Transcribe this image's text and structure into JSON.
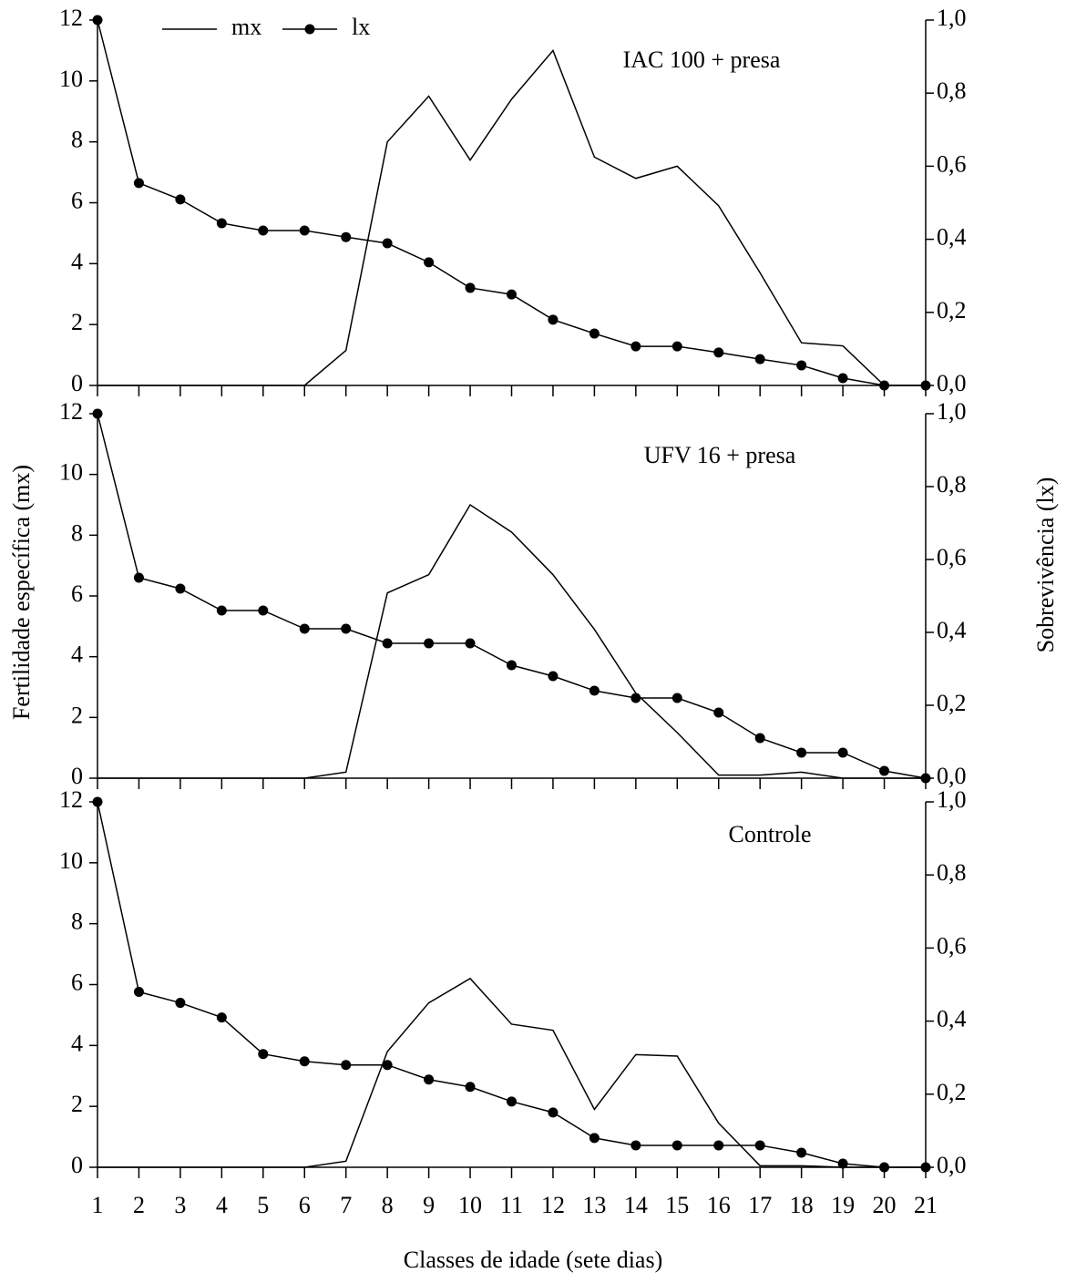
{
  "chart_data": [
    {
      "type": "line",
      "annotation": "IAC 100 + presa",
      "legend": "upper left",
      "x": [
        1,
        2,
        3,
        4,
        5,
        6,
        7,
        8,
        9,
        10,
        11,
        12,
        13,
        14,
        15,
        16,
        17,
        18,
        19,
        20,
        21
      ],
      "xlim": [
        1,
        21
      ],
      "ylim": [
        0,
        12
      ],
      "yticks": [
        0,
        2,
        4,
        6,
        8,
        10,
        12
      ],
      "y2lim": [
        0,
        1
      ],
      "y2ticks": [
        {
          "value": 0,
          "label": "0,0"
        },
        {
          "value": 0.2,
          "label": "0,2"
        },
        {
          "value": 0.4,
          "label": "0,4"
        },
        {
          "value": 0.6,
          "label": "0,6"
        },
        {
          "value": 0.8,
          "label": "0,8"
        },
        {
          "value": 1,
          "label": "1,0"
        }
      ],
      "series": [
        {
          "name": "mx",
          "color": "#000000",
          "values": [
            0,
            0,
            0,
            0,
            0,
            0,
            1.15,
            8,
            9.5,
            7.4,
            9.4,
            11,
            7.5,
            6.8,
            7.2,
            5.9,
            3.7,
            1.4,
            1.3,
            0,
            0
          ]
        },
        {
          "name": "lx",
          "color": "#000000",
          "axis": "y2",
          "marker": "circle",
          "values": [
            1,
            0.554,
            0.509,
            0.444,
            0.424,
            0.424,
            0.406,
            0.389,
            0.337,
            0.267,
            0.249,
            0.18,
            0.142,
            0.107,
            0.107,
            0.09,
            0.072,
            0.055,
            0.02,
            0,
            0
          ]
        }
      ]
    },
    {
      "type": "line",
      "annotation": "UFV 16 + presa",
      "ylabel": "Fertilidade específica (mx)",
      "y2label": "Sobrevivência (lx)",
      "x": [
        1,
        2,
        3,
        4,
        5,
        6,
        7,
        8,
        9,
        10,
        11,
        12,
        13,
        14,
        15,
        16,
        17,
        18,
        19,
        20,
        21
      ],
      "xlim": [
        1,
        21
      ],
      "ylim": [
        0,
        12
      ],
      "yticks": [
        0,
        2,
        4,
        6,
        8,
        10,
        12
      ],
      "y2lim": [
        0,
        1
      ],
      "y2ticks": [
        {
          "value": 0,
          "label": "0,0"
        },
        {
          "value": 0.2,
          "label": "0,2"
        },
        {
          "value": 0.4,
          "label": "0,4"
        },
        {
          "value": 0.6,
          "label": "0,6"
        },
        {
          "value": 0.8,
          "label": "0,8"
        },
        {
          "value": 1,
          "label": "1,0"
        }
      ],
      "series": [
        {
          "color": "#000000",
          "values": [
            0,
            0,
            0,
            0,
            0,
            0,
            0.2,
            6.1,
            6.7,
            9,
            8.1,
            6.7,
            4.9,
            2.8,
            1.5,
            0.1,
            0.1,
            0.2,
            0,
            0,
            0
          ]
        },
        {
          "color": "#000000",
          "axis": "y2",
          "marker": "circle",
          "values": [
            1,
            0.55,
            0.52,
            0.46,
            0.46,
            0.41,
            0.41,
            0.37,
            0.37,
            0.37,
            0.31,
            0.28,
            0.24,
            0.22,
            0.22,
            0.18,
            0.11,
            0.07,
            0.07,
            0.02,
            0
          ]
        }
      ]
    },
    {
      "type": "line",
      "annotation": "Controle",
      "xlabel": "Classes de idade (sete dias)",
      "x": [
        1,
        2,
        3,
        4,
        5,
        6,
        7,
        8,
        9,
        10,
        11,
        12,
        13,
        14,
        15,
        16,
        17,
        18,
        19,
        20,
        21
      ],
      "xlim": [
        1,
        21
      ],
      "xticks": [
        1,
        2,
        3,
        4,
        5,
        6,
        7,
        8,
        9,
        10,
        11,
        12,
        13,
        14,
        15,
        16,
        17,
        18,
        19,
        20,
        21
      ],
      "ylim": [
        0,
        12
      ],
      "yticks": [
        0,
        2,
        4,
        6,
        8,
        10,
        12
      ],
      "y2lim": [
        0,
        1
      ],
      "y2ticks": [
        {
          "value": 0,
          "label": "0,0"
        },
        {
          "value": 0.2,
          "label": "0,2"
        },
        {
          "value": 0.4,
          "label": "0,4"
        },
        {
          "value": 0.6,
          "label": "0,6"
        },
        {
          "value": 0.8,
          "label": "0,8"
        },
        {
          "value": 1,
          "label": "1,0"
        }
      ],
      "series": [
        {
          "color": "#000000",
          "values": [
            0,
            0,
            0,
            0,
            0,
            0,
            0.2,
            3.8,
            5.4,
            6.2,
            4.7,
            4.5,
            1.9,
            3.7,
            3.65,
            1.45,
            0.05,
            0.05,
            0,
            0,
            0
          ]
        },
        {
          "color": "#000000",
          "axis": "y2",
          "marker": "circle",
          "values": [
            1,
            0.48,
            0.45,
            0.41,
            0.31,
            0.29,
            0.28,
            0.28,
            0.24,
            0.22,
            0.18,
            0.15,
            0.08,
            0.06,
            0.06,
            0.06,
            0.06,
            0.04,
            0.01,
            0,
            0
          ]
        }
      ]
    }
  ]
}
